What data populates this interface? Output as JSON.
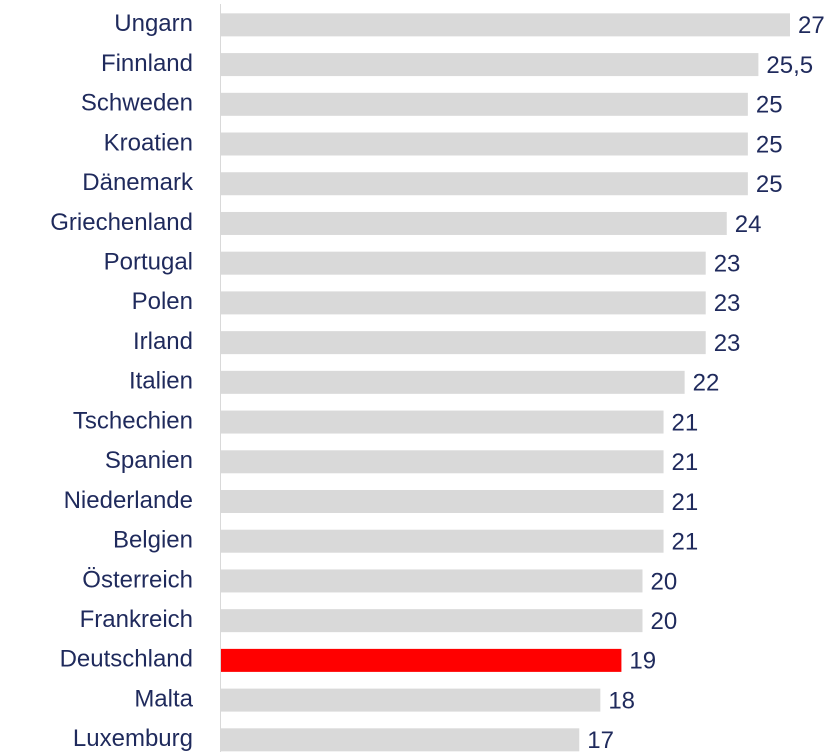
{
  "chart_data": {
    "type": "barh",
    "categories": [
      "Ungarn",
      "Finnland",
      "Schweden",
      "Kroatien",
      "Dänemark",
      "Griechenland",
      "Portugal",
      "Polen",
      "Irland",
      "Italien",
      "Tschechien",
      "Spanien",
      "Niederlande",
      "Belgien",
      "Österreich",
      "Frankreich",
      "Deutschland",
      "Malta",
      "Luxemburg"
    ],
    "values": [
      27,
      25.5,
      25,
      25,
      25,
      24,
      23,
      23,
      23,
      22,
      21,
      21,
      21,
      21,
      20,
      20,
      19,
      18,
      17
    ],
    "value_labels": [
      "27",
      "25,5",
      "25",
      "25",
      "25",
      "24",
      "23",
      "23",
      "23",
      "22",
      "21",
      "21",
      "21",
      "21",
      "20",
      "20",
      "19",
      "18",
      "17"
    ],
    "colors": [
      "#d9d9d9",
      "#d9d9d9",
      "#d9d9d9",
      "#d9d9d9",
      "#d9d9d9",
      "#d9d9d9",
      "#d9d9d9",
      "#d9d9d9",
      "#d9d9d9",
      "#d9d9d9",
      "#d9d9d9",
      "#d9d9d9",
      "#d9d9d9",
      "#d9d9d9",
      "#d9d9d9",
      "#d9d9d9",
      "#ff0000",
      "#d9d9d9",
      "#d9d9d9"
    ],
    "xlim": [
      0,
      27
    ]
  }
}
